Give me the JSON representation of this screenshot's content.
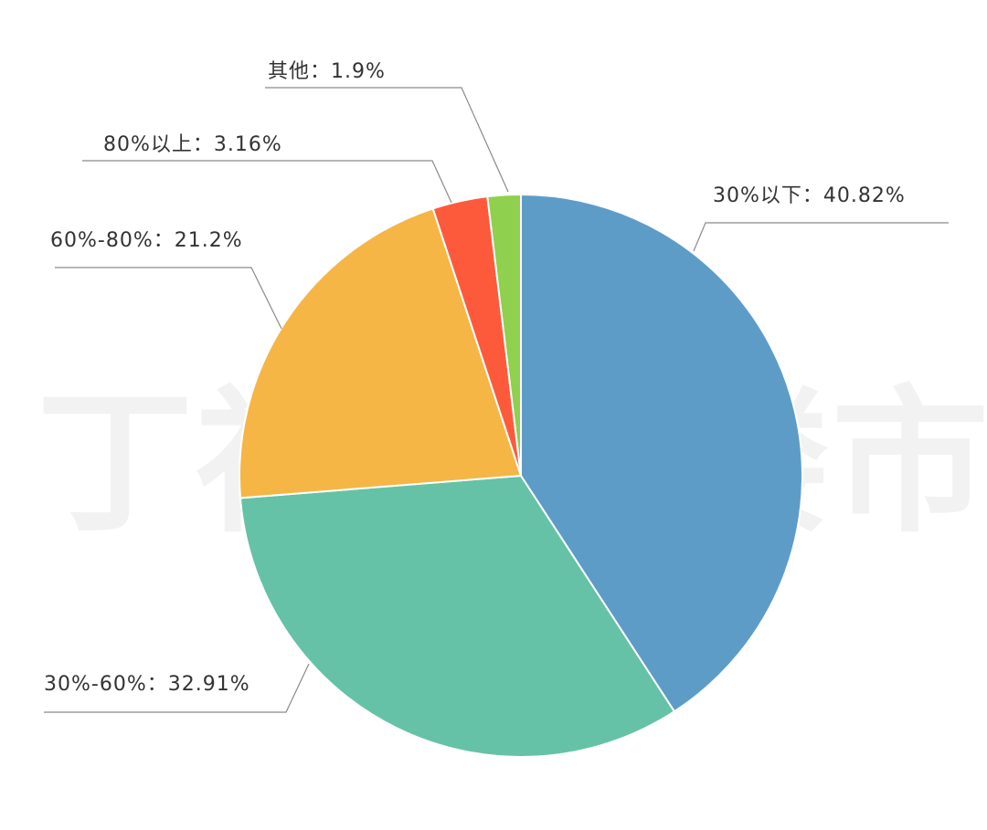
{
  "chart_data": {
    "type": "pie",
    "title": "",
    "slices": [
      {
        "name": "30%以下",
        "value": 40.82,
        "label": "30%以下：40.82%",
        "color": "#5e9cc8"
      },
      {
        "name": "30%-60%",
        "value": 32.91,
        "label": "30%-60%：32.91%",
        "color": "#65c2a6"
      },
      {
        "name": "60%-80%",
        "value": 21.2,
        "label": "60%-80%：21.2%",
        "color": "#f5b646"
      },
      {
        "name": "80%以上",
        "value": 3.16,
        "label": "80%以上：3.16%",
        "color": "#fd5a3c"
      },
      {
        "name": "其他",
        "value": 1.9,
        "label": "其他：1.9%",
        "color": "#8fd04e"
      }
    ],
    "start_direction": "top",
    "order": "clockwise",
    "legend": "none"
  },
  "watermark": "丁祖昱评楼市"
}
